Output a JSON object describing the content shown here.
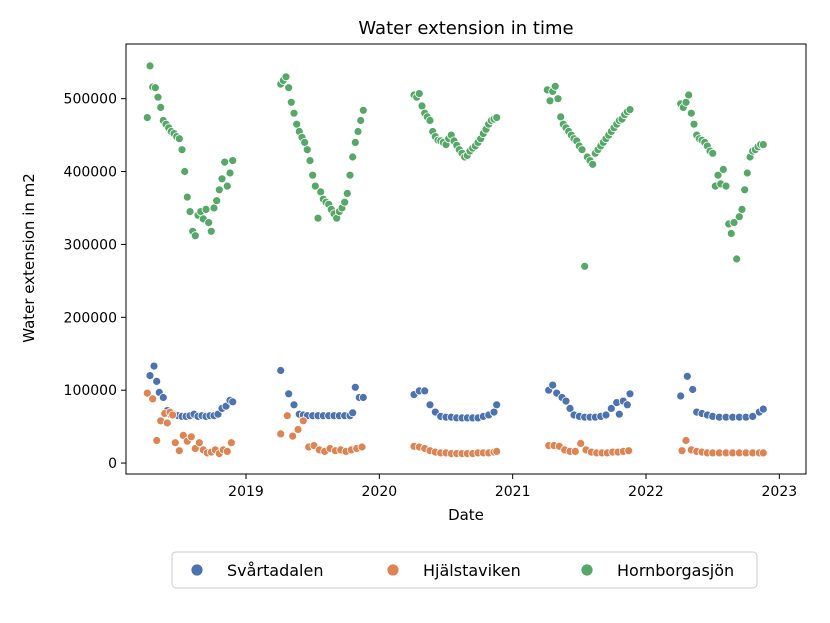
{
  "chart_data": {
    "type": "scatter",
    "title": "Water extension in time",
    "xlabel": "Date",
    "ylabel": "Water extension in m2",
    "xlim": [
      2018.1,
      2023.2
    ],
    "ylim": [
      -15000,
      575000
    ],
    "x_ticks": [
      2019,
      2020,
      2021,
      2022,
      2023
    ],
    "x_tick_labels": [
      "2019",
      "2020",
      "2021",
      "2022",
      "2023"
    ],
    "y_ticks": [
      0,
      100000,
      200000,
      300000,
      400000,
      500000
    ],
    "y_tick_labels": [
      "0",
      "100000",
      "200000",
      "300000",
      "400000",
      "500000"
    ],
    "grid": false,
    "legend_position": "bottom-center",
    "series": [
      {
        "name": "Svårtadalen",
        "color": "#4c72b0",
        "x": [
          2018.28,
          2018.31,
          2018.33,
          2018.35,
          2018.38,
          2018.41,
          2018.43,
          2018.45,
          2018.47,
          2018.49,
          2018.52,
          2018.55,
          2018.58,
          2018.61,
          2018.64,
          2018.67,
          2018.7,
          2018.73,
          2018.76,
          2018.79,
          2018.82,
          2018.85,
          2018.88,
          2018.9,
          2019.26,
          2019.32,
          2019.36,
          2019.4,
          2019.43,
          2019.46,
          2019.5,
          2019.54,
          2019.58,
          2019.62,
          2019.66,
          2019.7,
          2019.74,
          2019.78,
          2019.8,
          2019.82,
          2019.85,
          2019.88,
          2020.26,
          2020.3,
          2020.34,
          2020.38,
          2020.42,
          2020.46,
          2020.5,
          2020.54,
          2020.58,
          2020.62,
          2020.66,
          2020.7,
          2020.74,
          2020.78,
          2020.82,
          2020.86,
          2020.88,
          2021.27,
          2021.3,
          2021.33,
          2021.37,
          2021.4,
          2021.43,
          2021.46,
          2021.5,
          2021.54,
          2021.58,
          2021.62,
          2021.66,
          2021.7,
          2021.74,
          2021.78,
          2021.8,
          2021.83,
          2021.86,
          2021.88,
          2022.26,
          2022.31,
          2022.35,
          2022.38,
          2022.42,
          2022.46,
          2022.5,
          2022.55,
          2022.6,
          2022.65,
          2022.7,
          2022.75,
          2022.8,
          2022.85,
          2022.88
        ],
        "y": [
          120000,
          133000,
          112000,
          97000,
          90000,
          72000,
          67000,
          68000,
          66000,
          65000,
          64000,
          64000,
          65000,
          67000,
          64000,
          65000,
          64000,
          65000,
          65000,
          67000,
          75000,
          78000,
          86000,
          84000,
          127000,
          95000,
          80000,
          67000,
          66000,
          65000,
          65000,
          65000,
          65000,
          65000,
          65000,
          65000,
          65000,
          65000,
          69000,
          104000,
          90000,
          90000,
          94000,
          99000,
          99000,
          80000,
          70000,
          64000,
          63000,
          63000,
          62000,
          62000,
          62000,
          62000,
          62000,
          64000,
          66000,
          70000,
          80000,
          100000,
          107000,
          96000,
          90000,
          85000,
          75000,
          66000,
          64000,
          63000,
          63000,
          63000,
          64000,
          66000,
          75000,
          83000,
          67000,
          85000,
          80000,
          95000,
          92000,
          119000,
          101000,
          70000,
          68000,
          66000,
          64000,
          63000,
          63000,
          63000,
          63000,
          63000,
          64000,
          70000,
          74000
        ]
      },
      {
        "name": "Hjälstaviken",
        "color": "#dd8452",
        "x": [
          2018.26,
          2018.3,
          2018.33,
          2018.36,
          2018.39,
          2018.41,
          2018.43,
          2018.45,
          2018.47,
          2018.5,
          2018.53,
          2018.56,
          2018.59,
          2018.62,
          2018.65,
          2018.68,
          2018.71,
          2018.74,
          2018.77,
          2018.8,
          2018.83,
          2018.86,
          2018.89,
          2019.26,
          2019.31,
          2019.35,
          2019.39,
          2019.43,
          2019.47,
          2019.51,
          2019.55,
          2019.59,
          2019.63,
          2019.67,
          2019.71,
          2019.75,
          2019.79,
          2019.83,
          2019.87,
          2020.26,
          2020.3,
          2020.34,
          2020.38,
          2020.42,
          2020.46,
          2020.5,
          2020.54,
          2020.58,
          2020.62,
          2020.66,
          2020.7,
          2020.74,
          2020.78,
          2020.82,
          2020.86,
          2020.88,
          2021.27,
          2021.31,
          2021.35,
          2021.39,
          2021.43,
          2021.47,
          2021.51,
          2021.55,
          2021.59,
          2021.63,
          2021.67,
          2021.71,
          2021.75,
          2021.79,
          2021.83,
          2021.87,
          2022.27,
          2022.3,
          2022.34,
          2022.38,
          2022.42,
          2022.46,
          2022.5,
          2022.55,
          2022.6,
          2022.65,
          2022.7,
          2022.75,
          2022.8,
          2022.85,
          2022.88
        ],
        "y": [
          96000,
          88000,
          31000,
          58000,
          68000,
          55000,
          70000,
          66000,
          28000,
          17000,
          38000,
          30000,
          36000,
          20000,
          28000,
          18000,
          14000,
          15000,
          18000,
          13000,
          18000,
          16000,
          28000,
          40000,
          65000,
          37000,
          46000,
          58000,
          22000,
          24000,
          18000,
          16000,
          20000,
          17000,
          18000,
          16000,
          18000,
          20000,
          22000,
          23000,
          22000,
          20000,
          17000,
          15000,
          14000,
          14000,
          13000,
          13000,
          13000,
          13000,
          13000,
          14000,
          14000,
          14000,
          15000,
          16000,
          24000,
          24000,
          23000,
          18000,
          16000,
          16000,
          27000,
          18000,
          15000,
          14000,
          14000,
          14000,
          15000,
          15000,
          16000,
          17000,
          17000,
          31000,
          18000,
          16000,
          15000,
          14000,
          14000,
          14000,
          14000,
          14000,
          14000,
          14000,
          14000,
          14000,
          14000
        ]
      },
      {
        "name": "Hornborgasjön",
        "color": "#55a868",
        "x": [
          2018.26,
          2018.28,
          2018.3,
          2018.32,
          2018.34,
          2018.36,
          2018.38,
          2018.4,
          2018.42,
          2018.44,
          2018.46,
          2018.48,
          2018.5,
          2018.52,
          2018.54,
          2018.56,
          2018.58,
          2018.6,
          2018.62,
          2018.64,
          2018.66,
          2018.68,
          2018.7,
          2018.72,
          2018.74,
          2018.76,
          2018.78,
          2018.8,
          2018.82,
          2018.84,
          2018.86,
          2018.88,
          2018.9,
          2019.26,
          2019.28,
          2019.3,
          2019.32,
          2019.34,
          2019.36,
          2019.38,
          2019.4,
          2019.42,
          2019.44,
          2019.46,
          2019.48,
          2019.5,
          2019.52,
          2019.54,
          2019.56,
          2019.58,
          2019.6,
          2019.62,
          2019.64,
          2019.66,
          2019.68,
          2019.7,
          2019.72,
          2019.74,
          2019.76,
          2019.78,
          2019.8,
          2019.82,
          2019.84,
          2019.86,
          2019.88,
          2020.26,
          2020.28,
          2020.3,
          2020.32,
          2020.34,
          2020.36,
          2020.38,
          2020.4,
          2020.42,
          2020.44,
          2020.46,
          2020.48,
          2020.5,
          2020.52,
          2020.54,
          2020.56,
          2020.58,
          2020.6,
          2020.62,
          2020.64,
          2020.66,
          2020.68,
          2020.7,
          2020.72,
          2020.74,
          2020.76,
          2020.78,
          2020.8,
          2020.82,
          2020.84,
          2020.86,
          2020.88,
          2021.26,
          2021.28,
          2021.3,
          2021.32,
          2021.34,
          2021.36,
          2021.38,
          2021.4,
          2021.42,
          2021.44,
          2021.46,
          2021.48,
          2021.5,
          2021.52,
          2021.54,
          2021.56,
          2021.58,
          2021.6,
          2021.62,
          2021.64,
          2021.66,
          2021.68,
          2021.7,
          2021.72,
          2021.74,
          2021.76,
          2021.78,
          2021.8,
          2021.82,
          2021.84,
          2021.86,
          2021.88,
          2022.26,
          2022.28,
          2022.3,
          2022.32,
          2022.34,
          2022.36,
          2022.38,
          2022.4,
          2022.42,
          2022.44,
          2022.46,
          2022.48,
          2022.5,
          2022.52,
          2022.54,
          2022.56,
          2022.58,
          2022.6,
          2022.62,
          2022.64,
          2022.66,
          2022.68,
          2022.7,
          2022.72,
          2022.74,
          2022.76,
          2022.78,
          2022.8,
          2022.82,
          2022.84,
          2022.86,
          2022.88
        ],
        "y": [
          474000,
          545000,
          516000,
          515000,
          502000,
          488000,
          470000,
          465000,
          460000,
          455000,
          452000,
          448000,
          445000,
          430000,
          400000,
          365000,
          345000,
          318000,
          312000,
          340000,
          345000,
          335000,
          348000,
          330000,
          318000,
          350000,
          360000,
          375000,
          390000,
          413000,
          380000,
          398000,
          415000,
          520000,
          525000,
          530000,
          515000,
          495000,
          480000,
          465000,
          455000,
          447000,
          440000,
          430000,
          415000,
          395000,
          380000,
          336000,
          372000,
          362000,
          358000,
          355000,
          348000,
          342000,
          336000,
          345000,
          350000,
          358000,
          370000,
          395000,
          420000,
          440000,
          455000,
          470000,
          484000,
          505000,
          502000,
          507000,
          490000,
          480000,
          475000,
          470000,
          455000,
          448000,
          443000,
          442000,
          440000,
          437000,
          445000,
          450000,
          442000,
          436000,
          430000,
          425000,
          420000,
          422000,
          428000,
          432000,
          435000,
          440000,
          445000,
          452000,
          458000,
          465000,
          470000,
          472000,
          474000,
          512000,
          497000,
          510000,
          517000,
          500000,
          475000,
          465000,
          460000,
          455000,
          450000,
          445000,
          442000,
          435000,
          430000,
          270000,
          420000,
          415000,
          410000,
          425000,
          430000,
          435000,
          440000,
          445000,
          450000,
          455000,
          460000,
          465000,
          470000,
          472000,
          478000,
          482000,
          485000,
          493000,
          488000,
          495000,
          505000,
          480000,
          465000,
          450000,
          445000,
          443000,
          440000,
          435000,
          428000,
          425000,
          380000,
          395000,
          383000,
          403000,
          380000,
          328000,
          315000,
          330000,
          280000,
          338000,
          348000,
          375000,
          398000,
          420000,
          428000,
          430000,
          434000,
          437000,
          437000
        ]
      }
    ]
  }
}
